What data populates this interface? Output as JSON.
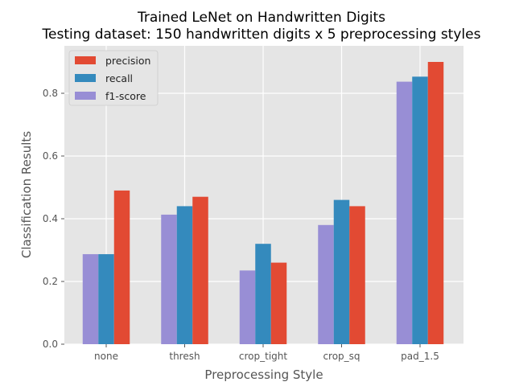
{
  "chart_data": {
    "type": "bar",
    "title": "Trained LeNet on Handwritten Digits",
    "subtitle": "Testing dataset: 150 handwritten digits x 5 preprocessing styles",
    "xlabel": "Preprocessing Style",
    "ylabel": "Classification Results",
    "categories": [
      "none",
      "thresh",
      "crop_tight",
      "crop_sq",
      "pad_1.5"
    ],
    "ylim": [
      0,
      0.9
    ],
    "yticks": [
      0.0,
      0.2,
      0.4,
      0.6,
      0.8
    ],
    "ytick_labels": [
      "0.0",
      "0.2",
      "0.4",
      "0.6",
      "0.8"
    ],
    "grid": true,
    "legend_position": "top-left",
    "series": [
      {
        "name": "precision",
        "color": "#E24A33",
        "values": [
          0.49,
          0.47,
          0.26,
          0.44,
          0.9
        ]
      },
      {
        "name": "recall",
        "color": "#348ABD",
        "values": [
          0.287,
          0.44,
          0.32,
          0.46,
          0.853
        ]
      },
      {
        "name": "f1-score",
        "color": "#988ED5",
        "values": [
          0.287,
          0.413,
          0.235,
          0.38,
          0.837
        ]
      }
    ],
    "draw_order": [
      "f1-score",
      "recall",
      "precision"
    ]
  }
}
